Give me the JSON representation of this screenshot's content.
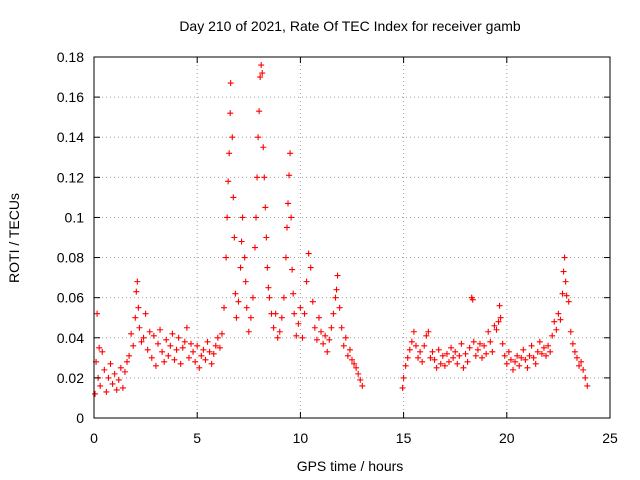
{
  "chart_data": {
    "type": "scatter",
    "title": "Day 210 of 2021, Rate Of TEC Index for receiver gamb",
    "xlabel": "GPS time / hours",
    "ylabel": "ROTI / TECUs",
    "xlim": [
      0,
      25
    ],
    "ylim": [
      0,
      0.18
    ],
    "xticks": [
      0,
      5,
      10,
      15,
      20,
      25
    ],
    "xtick_labels": [
      "0",
      "5",
      "10",
      "15",
      "20",
      "25"
    ],
    "yticks": [
      0,
      0.02,
      0.04,
      0.06,
      0.08,
      0.1,
      0.12,
      0.14,
      0.16,
      0.18
    ],
    "ytick_labels": [
      "0",
      "0.02",
      "0.04",
      "0.06",
      "0.08",
      "0.1",
      "0.12",
      "0.14",
      "0.16",
      "0.18"
    ],
    "grid": true,
    "marker": "+",
    "series": [
      {
        "name": "ROTI",
        "color": "#ff0000",
        "points": [
          [
            0.05,
            0.012
          ],
          [
            0.1,
            0.028
          ],
          [
            0.15,
            0.052
          ],
          [
            0.2,
            0.02
          ],
          [
            0.25,
            0.035
          ],
          [
            0.3,
            0.016
          ],
          [
            0.4,
            0.033
          ],
          [
            0.5,
            0.024
          ],
          [
            0.6,
            0.013
          ],
          [
            0.7,
            0.02
          ],
          [
            0.8,
            0.027
          ],
          [
            0.9,
            0.017
          ],
          [
            1.0,
            0.022
          ],
          [
            1.1,
            0.014
          ],
          [
            1.2,
            0.019
          ],
          [
            1.3,
            0.025
          ],
          [
            1.4,
            0.015
          ],
          [
            1.5,
            0.023
          ],
          [
            1.6,
            0.028
          ],
          [
            1.7,
            0.031
          ],
          [
            1.8,
            0.042
          ],
          [
            1.9,
            0.036
          ],
          [
            2.0,
            0.05
          ],
          [
            2.05,
            0.063
          ],
          [
            2.1,
            0.068
          ],
          [
            2.15,
            0.055
          ],
          [
            2.2,
            0.045
          ],
          [
            2.3,
            0.038
          ],
          [
            2.4,
            0.04
          ],
          [
            2.5,
            0.052
          ],
          [
            2.6,
            0.034
          ],
          [
            2.7,
            0.043
          ],
          [
            2.8,
            0.03
          ],
          [
            2.9,
            0.041
          ],
          [
            3.0,
            0.026
          ],
          [
            3.1,
            0.037
          ],
          [
            3.2,
            0.044
          ],
          [
            3.3,
            0.033
          ],
          [
            3.4,
            0.028
          ],
          [
            3.5,
            0.039
          ],
          [
            3.6,
            0.031
          ],
          [
            3.7,
            0.036
          ],
          [
            3.8,
            0.042
          ],
          [
            3.9,
            0.029
          ],
          [
            4.0,
            0.034
          ],
          [
            4.1,
            0.04
          ],
          [
            4.2,
            0.027
          ],
          [
            4.3,
            0.035
          ],
          [
            4.4,
            0.038
          ],
          [
            4.5,
            0.045
          ],
          [
            4.6,
            0.03
          ],
          [
            4.7,
            0.037
          ],
          [
            4.8,
            0.033
          ],
          [
            4.9,
            0.028
          ],
          [
            5.0,
            0.036
          ],
          [
            5.1,
            0.025
          ],
          [
            5.2,
            0.031
          ],
          [
            5.3,
            0.034
          ],
          [
            5.4,
            0.029
          ],
          [
            5.5,
            0.038
          ],
          [
            5.6,
            0.033
          ],
          [
            5.7,
            0.027
          ],
          [
            5.8,
            0.032
          ],
          [
            5.9,
            0.036
          ],
          [
            6.0,
            0.04
          ],
          [
            6.1,
            0.035
          ],
          [
            6.2,
            0.042
          ],
          [
            6.3,
            0.055
          ],
          [
            6.4,
            0.08
          ],
          [
            6.45,
            0.1
          ],
          [
            6.5,
            0.118
          ],
          [
            6.55,
            0.132
          ],
          [
            6.6,
            0.152
          ],
          [
            6.62,
            0.167
          ],
          [
            6.7,
            0.14
          ],
          [
            6.75,
            0.11
          ],
          [
            6.8,
            0.09
          ],
          [
            6.85,
            0.062
          ],
          [
            6.9,
            0.05
          ],
          [
            7.0,
            0.058
          ],
          [
            7.1,
            0.075
          ],
          [
            7.15,
            0.088
          ],
          [
            7.2,
            0.1
          ],
          [
            7.3,
            0.08
          ],
          [
            7.35,
            0.068
          ],
          [
            7.4,
            0.055
          ],
          [
            7.5,
            0.043
          ],
          [
            7.6,
            0.05
          ],
          [
            7.7,
            0.06
          ],
          [
            7.8,
            0.085
          ],
          [
            7.85,
            0.1
          ],
          [
            7.9,
            0.12
          ],
          [
            7.95,
            0.14
          ],
          [
            8.0,
            0.153
          ],
          [
            8.05,
            0.17
          ],
          [
            8.1,
            0.176
          ],
          [
            8.15,
            0.172
          ],
          [
            8.2,
            0.135
          ],
          [
            8.25,
            0.12
          ],
          [
            8.3,
            0.105
          ],
          [
            8.35,
            0.09
          ],
          [
            8.4,
            0.075
          ],
          [
            8.45,
            0.065
          ],
          [
            8.5,
            0.06
          ],
          [
            8.6,
            0.052
          ],
          [
            8.7,
            0.045
          ],
          [
            8.8,
            0.052
          ],
          [
            8.9,
            0.04
          ],
          [
            9.0,
            0.043
          ],
          [
            9.1,
            0.05
          ],
          [
            9.2,
            0.06
          ],
          [
            9.3,
            0.08
          ],
          [
            9.35,
            0.095
          ],
          [
            9.4,
            0.107
          ],
          [
            9.45,
            0.121
          ],
          [
            9.5,
            0.132
          ],
          [
            9.55,
            0.1
          ],
          [
            9.6,
            0.074
          ],
          [
            9.65,
            0.062
          ],
          [
            9.7,
            0.052
          ],
          [
            9.8,
            0.041
          ],
          [
            9.9,
            0.047
          ],
          [
            10.0,
            0.055
          ],
          [
            10.1,
            0.04
          ],
          [
            10.2,
            0.052
          ],
          [
            10.3,
            0.068
          ],
          [
            10.4,
            0.082
          ],
          [
            10.5,
            0.075
          ],
          [
            10.6,
            0.058
          ],
          [
            10.7,
            0.045
          ],
          [
            10.8,
            0.039
          ],
          [
            10.9,
            0.05
          ],
          [
            11.0,
            0.043
          ],
          [
            11.1,
            0.037
          ],
          [
            11.2,
            0.041
          ],
          [
            11.3,
            0.033
          ],
          [
            11.4,
            0.039
          ],
          [
            11.5,
            0.045
          ],
          [
            11.6,
            0.052
          ],
          [
            11.7,
            0.06
          ],
          [
            11.75,
            0.064
          ],
          [
            11.8,
            0.071
          ],
          [
            11.9,
            0.055
          ],
          [
            12.0,
            0.045
          ],
          [
            12.1,
            0.036
          ],
          [
            12.2,
            0.04
          ],
          [
            12.3,
            0.031
          ],
          [
            12.4,
            0.034
          ],
          [
            12.5,
            0.029
          ],
          [
            12.6,
            0.027
          ],
          [
            12.7,
            0.025
          ],
          [
            12.8,
            0.022
          ],
          [
            12.9,
            0.019
          ],
          [
            13.0,
            0.016
          ],
          [
            14.95,
            0.015
          ],
          [
            15.0,
            0.02
          ],
          [
            15.1,
            0.026
          ],
          [
            15.2,
            0.03
          ],
          [
            15.3,
            0.034
          ],
          [
            15.4,
            0.038
          ],
          [
            15.5,
            0.043
          ],
          [
            15.6,
            0.036
          ],
          [
            15.7,
            0.03
          ],
          [
            15.8,
            0.033
          ],
          [
            15.9,
            0.028
          ],
          [
            16.0,
            0.036
          ],
          [
            16.1,
            0.041
          ],
          [
            16.2,
            0.043
          ],
          [
            16.3,
            0.03
          ],
          [
            16.4,
            0.033
          ],
          [
            16.5,
            0.029
          ],
          [
            16.6,
            0.025
          ],
          [
            16.7,
            0.034
          ],
          [
            16.8,
            0.027
          ],
          [
            16.9,
            0.031
          ],
          [
            17.0,
            0.026
          ],
          [
            17.1,
            0.032
          ],
          [
            17.2,
            0.028
          ],
          [
            17.3,
            0.035
          ],
          [
            17.4,
            0.03
          ],
          [
            17.5,
            0.033
          ],
          [
            17.6,
            0.027
          ],
          [
            17.7,
            0.031
          ],
          [
            17.8,
            0.037
          ],
          [
            17.9,
            0.025
          ],
          [
            18.0,
            0.032
          ],
          [
            18.1,
            0.028
          ],
          [
            18.2,
            0.035
          ],
          [
            18.3,
            0.06
          ],
          [
            18.35,
            0.059
          ],
          [
            18.4,
            0.038
          ],
          [
            18.5,
            0.031
          ],
          [
            18.6,
            0.034
          ],
          [
            18.7,
            0.037
          ],
          [
            18.8,
            0.03
          ],
          [
            18.9,
            0.036
          ],
          [
            19.0,
            0.032
          ],
          [
            19.1,
            0.043
          ],
          [
            19.2,
            0.038
          ],
          [
            19.3,
            0.033
          ],
          [
            19.4,
            0.046
          ],
          [
            19.5,
            0.044
          ],
          [
            19.6,
            0.048
          ],
          [
            19.65,
            0.056
          ],
          [
            19.7,
            0.05
          ],
          [
            19.8,
            0.037
          ],
          [
            19.9,
            0.031
          ],
          [
            20.0,
            0.027
          ],
          [
            20.1,
            0.033
          ],
          [
            20.2,
            0.029
          ],
          [
            20.3,
            0.024
          ],
          [
            20.4,
            0.028
          ],
          [
            20.5,
            0.031
          ],
          [
            20.6,
            0.026
          ],
          [
            20.7,
            0.03
          ],
          [
            20.8,
            0.034
          ],
          [
            20.9,
            0.029
          ],
          [
            21.0,
            0.025
          ],
          [
            21.1,
            0.031
          ],
          [
            21.2,
            0.036
          ],
          [
            21.3,
            0.03
          ],
          [
            21.4,
            0.027
          ],
          [
            21.5,
            0.033
          ],
          [
            21.6,
            0.038
          ],
          [
            21.7,
            0.032
          ],
          [
            21.8,
            0.035
          ],
          [
            21.9,
            0.031
          ],
          [
            22.0,
            0.036
          ],
          [
            22.1,
            0.033
          ],
          [
            22.2,
            0.041
          ],
          [
            22.3,
            0.048
          ],
          [
            22.4,
            0.044
          ],
          [
            22.5,
            0.052
          ],
          [
            22.6,
            0.049
          ],
          [
            22.7,
            0.062
          ],
          [
            22.75,
            0.073
          ],
          [
            22.8,
            0.08
          ],
          [
            22.85,
            0.068
          ],
          [
            22.9,
            0.061
          ],
          [
            23.0,
            0.058
          ],
          [
            23.1,
            0.043
          ],
          [
            23.2,
            0.037
          ],
          [
            23.3,
            0.033
          ],
          [
            23.4,
            0.03
          ],
          [
            23.5,
            0.026
          ],
          [
            23.6,
            0.028
          ],
          [
            23.7,
            0.024
          ],
          [
            23.8,
            0.02
          ],
          [
            23.9,
            0.016
          ]
        ]
      }
    ]
  }
}
